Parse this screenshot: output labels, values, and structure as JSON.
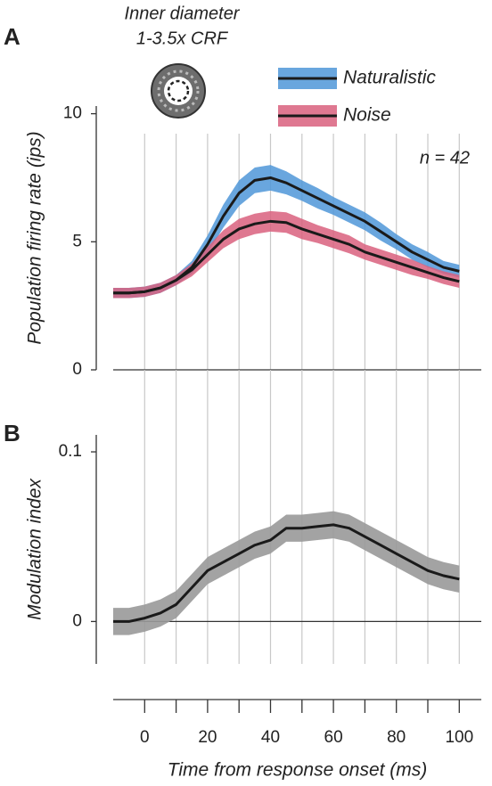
{
  "chart_data": [
    {
      "type": "line",
      "panel_label": "A",
      "inset_title": [
        "Inner diameter",
        "1-3.5x CRF"
      ],
      "ylabel": "Population firing rate (ips)",
      "annotation": "n = 42",
      "x": [
        -10,
        -5,
        0,
        5,
        10,
        15,
        20,
        25,
        30,
        35,
        40,
        45,
        50,
        55,
        60,
        65,
        70,
        75,
        80,
        85,
        90,
        95,
        100
      ],
      "xlim": [
        -10,
        107
      ],
      "ylim": [
        0,
        10.3
      ],
      "yticks": [
        0,
        5,
        10
      ],
      "series": [
        {
          "name": "Naturalistic",
          "color": "#4f97d8",
          "values": [
            3.0,
            3.0,
            3.05,
            3.2,
            3.5,
            4.0,
            4.9,
            6.0,
            6.9,
            7.4,
            7.5,
            7.3,
            7.0,
            6.7,
            6.4,
            6.1,
            5.8,
            5.4,
            5.0,
            4.6,
            4.3,
            4.0,
            3.85
          ],
          "lower": [
            2.8,
            2.8,
            2.85,
            3.0,
            3.3,
            3.75,
            4.55,
            5.55,
            6.4,
            6.9,
            7.0,
            6.85,
            6.6,
            6.3,
            6.05,
            5.75,
            5.45,
            5.05,
            4.7,
            4.3,
            4.0,
            3.75,
            3.6
          ],
          "upper": [
            3.2,
            3.2,
            3.25,
            3.4,
            3.7,
            4.25,
            5.25,
            6.45,
            7.4,
            7.9,
            8.0,
            7.75,
            7.4,
            7.1,
            6.75,
            6.45,
            6.15,
            5.75,
            5.3,
            4.9,
            4.6,
            4.25,
            4.1
          ]
        },
        {
          "name": "Noise",
          "color": "#d9607e",
          "values": [
            3.0,
            3.0,
            3.05,
            3.2,
            3.5,
            3.9,
            4.5,
            5.1,
            5.5,
            5.7,
            5.8,
            5.75,
            5.5,
            5.3,
            5.1,
            4.9,
            4.6,
            4.4,
            4.2,
            4.0,
            3.8,
            3.6,
            3.45
          ],
          "lower": [
            2.8,
            2.8,
            2.85,
            3.0,
            3.3,
            3.65,
            4.2,
            4.75,
            5.1,
            5.3,
            5.4,
            5.35,
            5.1,
            4.95,
            4.75,
            4.55,
            4.3,
            4.1,
            3.9,
            3.7,
            3.55,
            3.35,
            3.2
          ],
          "upper": [
            3.2,
            3.2,
            3.25,
            3.4,
            3.7,
            4.15,
            4.8,
            5.45,
            5.9,
            6.1,
            6.2,
            6.15,
            5.9,
            5.65,
            5.45,
            5.25,
            4.9,
            4.7,
            4.5,
            4.3,
            4.05,
            3.85,
            3.7
          ]
        }
      ]
    },
    {
      "type": "line",
      "panel_label": "B",
      "ylabel": "Modulation index",
      "xlabel": "Time from response onset (ms)",
      "x": [
        -10,
        -5,
        0,
        5,
        10,
        15,
        20,
        25,
        30,
        35,
        40,
        45,
        50,
        55,
        60,
        65,
        70,
        75,
        80,
        85,
        90,
        95,
        100
      ],
      "xlim": [
        -10,
        107
      ],
      "ylim": [
        -0.025,
        0.11
      ],
      "yticks": [
        0,
        0.1
      ],
      "xticks": [
        0,
        20,
        40,
        60,
        80,
        100
      ],
      "xticks_minor": [
        10,
        30,
        50,
        70,
        90
      ],
      "series": [
        {
          "name": "Modulation index",
          "color": "#999999",
          "values": [
            0,
            0,
            0.002,
            0.005,
            0.01,
            0.02,
            0.03,
            0.035,
            0.04,
            0.045,
            0.048,
            0.055,
            0.055,
            0.056,
            0.057,
            0.055,
            0.05,
            0.045,
            0.04,
            0.035,
            0.03,
            0.027,
            0.025
          ],
          "lower": [
            -0.008,
            -0.008,
            -0.006,
            -0.003,
            0.002,
            0.012,
            0.022,
            0.027,
            0.032,
            0.037,
            0.04,
            0.047,
            0.047,
            0.048,
            0.049,
            0.047,
            0.042,
            0.037,
            0.032,
            0.027,
            0.022,
            0.019,
            0.017
          ],
          "upper": [
            0.008,
            0.008,
            0.01,
            0.013,
            0.018,
            0.028,
            0.038,
            0.043,
            0.048,
            0.053,
            0.056,
            0.063,
            0.063,
            0.064,
            0.065,
            0.063,
            0.058,
            0.053,
            0.048,
            0.043,
            0.038,
            0.035,
            0.033
          ]
        }
      ]
    }
  ]
}
